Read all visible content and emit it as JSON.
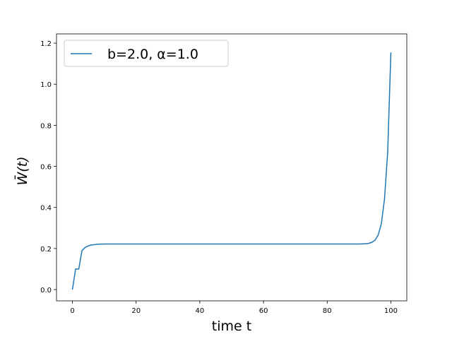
{
  "chart_data": {
    "type": "line",
    "x_label": "time t",
    "y_label": "W̄(t)",
    "x": [
      0,
      1,
      2,
      3,
      4,
      5,
      6,
      7,
      8,
      10,
      15,
      20,
      30,
      40,
      50,
      60,
      70,
      80,
      85,
      90,
      92,
      93,
      94,
      95,
      96,
      97,
      98,
      99,
      100
    ],
    "series": [
      {
        "name": "b=2.0, α=1.0",
        "color": "#1f77b4",
        "values": [
          0.0,
          0.1,
          0.1,
          0.19,
          0.205,
          0.213,
          0.217,
          0.219,
          0.221,
          0.222,
          0.222,
          0.222,
          0.222,
          0.222,
          0.222,
          0.222,
          0.222,
          0.222,
          0.222,
          0.222,
          0.223,
          0.225,
          0.23,
          0.24,
          0.265,
          0.32,
          0.44,
          0.67,
          1.155
        ]
      }
    ],
    "xlim": [
      -5,
      105
    ],
    "xticks": [
      0,
      20,
      40,
      60,
      80,
      100
    ],
    "ylim": [
      -0.055,
      1.245
    ],
    "yticks": [
      {
        "value": 0,
        "label": "0.0"
      },
      {
        "value": 0.2,
        "label": "0.2"
      },
      {
        "value": 0.4,
        "label": "0.4"
      },
      {
        "value": 0.6,
        "label": "0.6"
      },
      {
        "value": 0.8,
        "label": "0.8"
      },
      {
        "value": 1,
        "label": "1.0"
      },
      {
        "value": 1.2,
        "label": "1.2"
      }
    ],
    "legend": "upper left"
  }
}
